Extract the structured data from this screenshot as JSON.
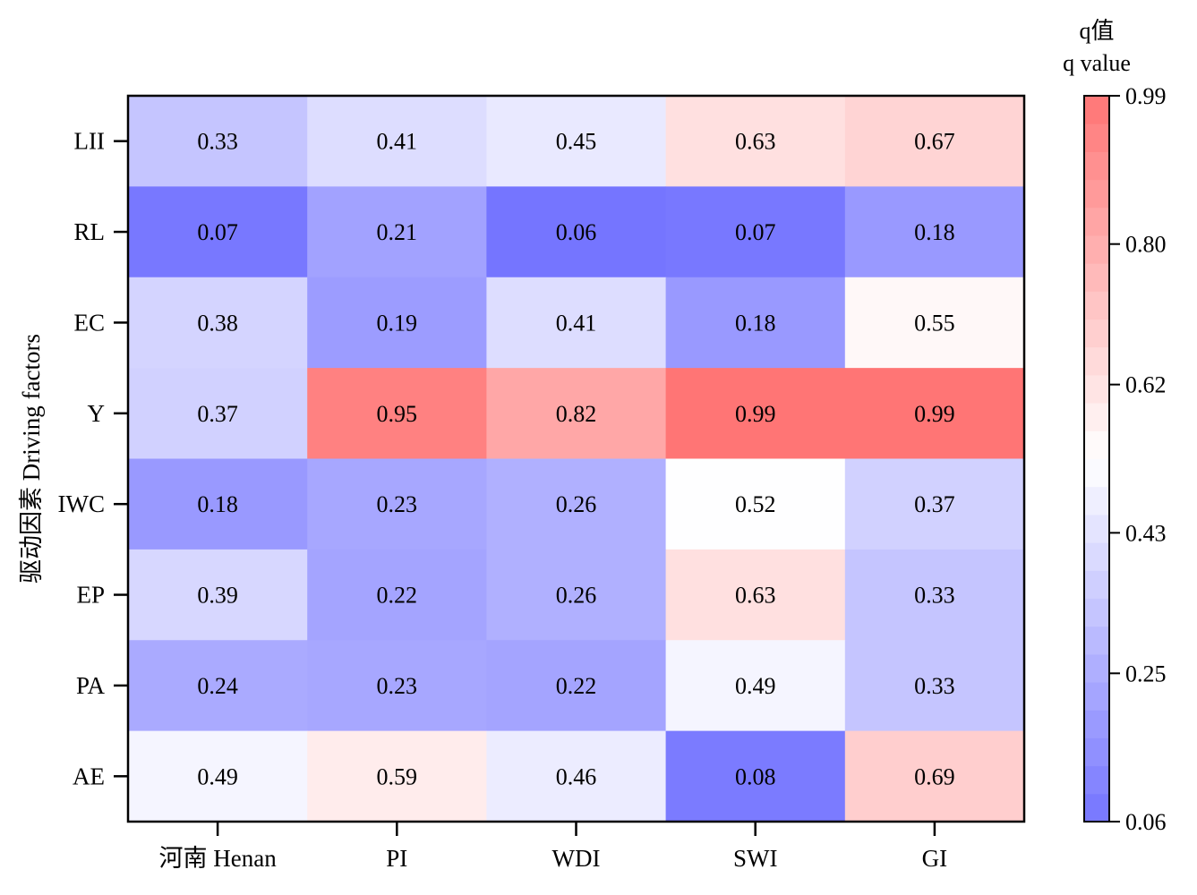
{
  "chart_data": {
    "type": "heatmap",
    "x_categories": [
      "河南 Henan",
      "PI",
      "WDI",
      "SWI",
      "GI"
    ],
    "y_categories": [
      "LII",
      "RL",
      "EC",
      "Y",
      "IWC",
      "EP",
      "PA",
      "AE"
    ],
    "values": [
      [
        0.33,
        0.41,
        0.45,
        0.63,
        0.67
      ],
      [
        0.07,
        0.21,
        0.06,
        0.07,
        0.18
      ],
      [
        0.38,
        0.19,
        0.41,
        0.18,
        0.55
      ],
      [
        0.37,
        0.95,
        0.82,
        0.99,
        0.99
      ],
      [
        0.18,
        0.23,
        0.26,
        0.52,
        0.37
      ],
      [
        0.39,
        0.22,
        0.26,
        0.63,
        0.33
      ],
      [
        0.24,
        0.23,
        0.22,
        0.49,
        0.33
      ],
      [
        0.49,
        0.59,
        0.46,
        0.08,
        0.69
      ]
    ],
    "ylabel": "驱动因素 Driving factors",
    "xlabel": "",
    "colorbar": {
      "title_line1": "q值",
      "title_line2": "q value",
      "min": 0.06,
      "max": 0.99,
      "ticks": [
        "0.99",
        "0.80",
        "0.62",
        "0.43",
        "0.25",
        "0.06"
      ],
      "tick_values": [
        0.99,
        0.8,
        0.62,
        0.43,
        0.25,
        0.06
      ],
      "low_color": "#7575ff",
      "mid_color": "#ffffff",
      "high_color": "#ff7575",
      "mid_value": 0.525,
      "levels": 26
    }
  }
}
